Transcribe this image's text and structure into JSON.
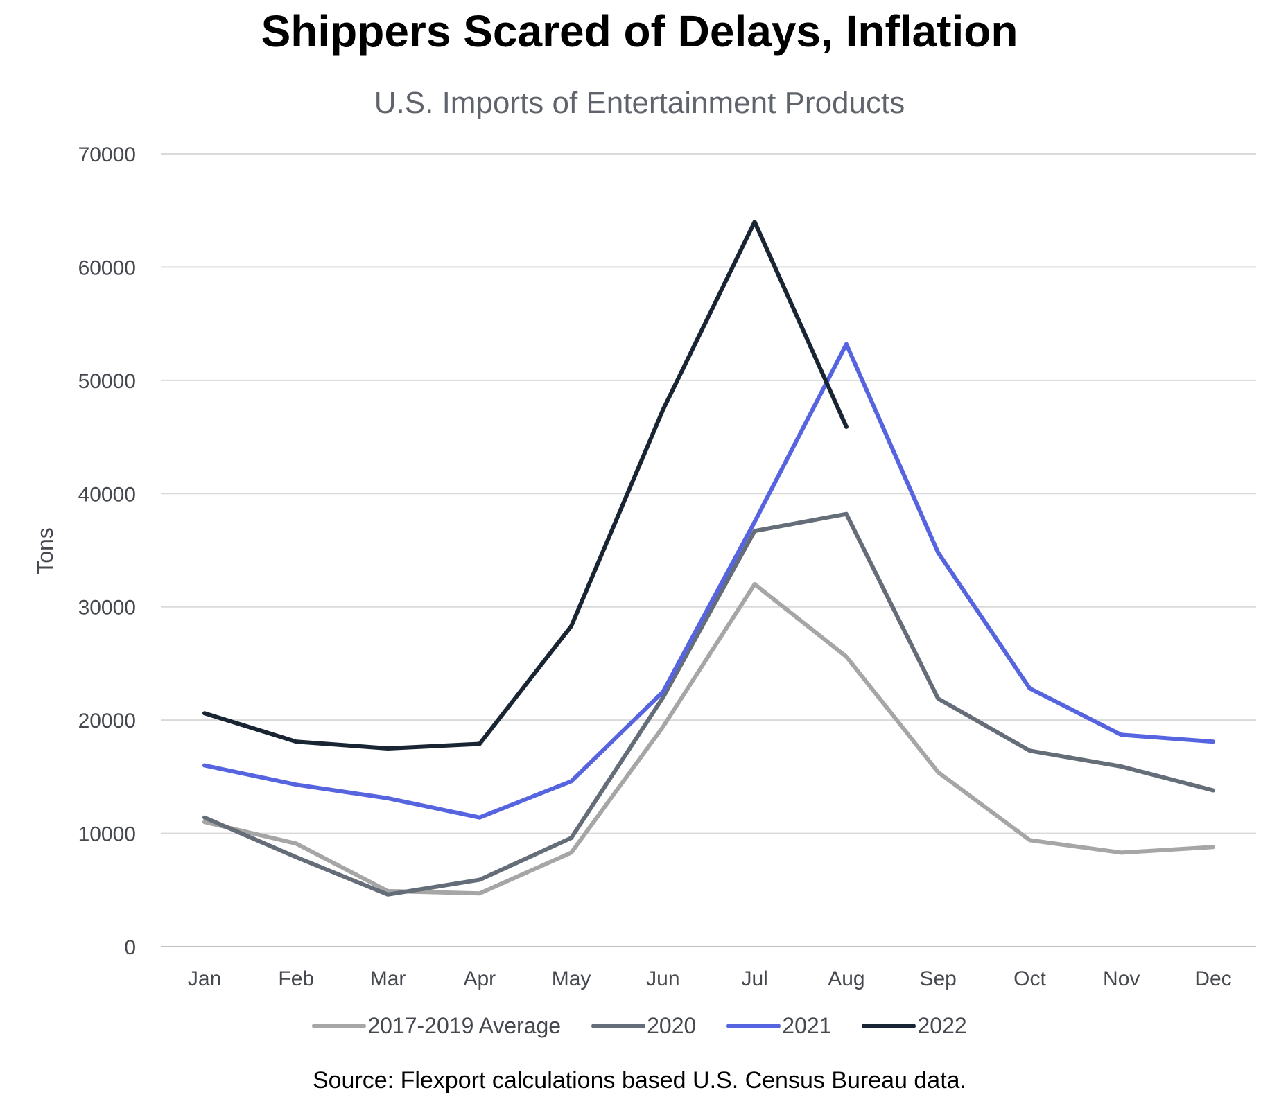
{
  "chart_data": {
    "type": "line",
    "title": "Shippers Scared of Delays, Inflation",
    "subtitle": "U.S. Imports of Entertainment Products",
    "xlabel": "",
    "ylabel": "Tons",
    "categories": [
      "Jan",
      "Feb",
      "Mar",
      "Apr",
      "May",
      "Jun",
      "Jul",
      "Aug",
      "Sep",
      "Oct",
      "Nov",
      "Dec"
    ],
    "yticks": [
      0,
      10000,
      20000,
      30000,
      40000,
      50000,
      60000,
      70000
    ],
    "ylim": [
      0,
      70000
    ],
    "grid": "horizontal",
    "legend_position": "bottom",
    "series": [
      {
        "name": "2017-2019 Average",
        "color": "#a6a6a6",
        "values": [
          11000,
          9100,
          4900,
          4700,
          8300,
          19400,
          32000,
          25600,
          15400,
          9400,
          8300,
          8800
        ]
      },
      {
        "name": "2020",
        "color": "#646d78",
        "values": [
          11400,
          7900,
          4600,
          5900,
          9600,
          22000,
          36700,
          38200,
          21900,
          17300,
          15900,
          13800
        ]
      },
      {
        "name": "2021",
        "color": "#5664e0",
        "values": [
          16000,
          14300,
          13100,
          11400,
          14600,
          22500,
          37500,
          53200,
          34800,
          22800,
          18700,
          18100
        ]
      },
      {
        "name": "2022",
        "color": "#1a2533",
        "values": [
          20600,
          18100,
          17500,
          17900,
          28300,
          47400,
          64000,
          45900,
          null,
          null,
          null,
          null
        ]
      }
    ],
    "source": "Source: Flexport calculations based U.S. Census Bureau data."
  }
}
